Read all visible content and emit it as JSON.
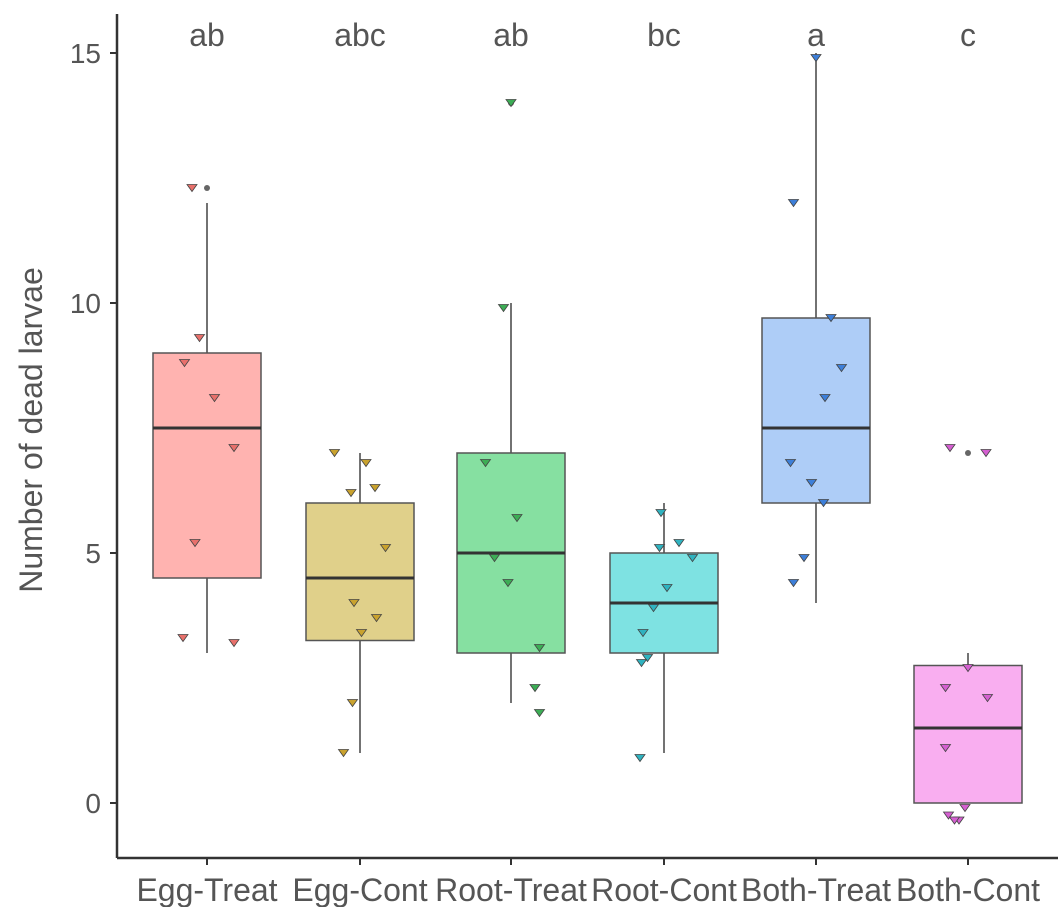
{
  "chart_data": {
    "type": "box",
    "ylabel": "Number of dead larvae",
    "xlabel": "",
    "title": "",
    "ylim": [
      -1,
      15.8
    ],
    "yticks": [
      0,
      5,
      10,
      15
    ],
    "ytick_labels": [
      "0",
      "5",
      "10",
      "15"
    ],
    "categories": [
      "Egg-Treat",
      "Egg-Cont",
      "Root-Treat",
      "Root-Cont",
      "Both-Treat",
      "Both-Cont"
    ],
    "groups": [
      {
        "name": "Egg-Treat",
        "letter": "ab",
        "color": "#ffb3b0",
        "point_color": "#e8706b",
        "min": 3,
        "q1": 4.5,
        "median": 7.5,
        "q3": 9,
        "max": 12,
        "outliers": [
          12.3
        ],
        "points": [
          [
            -0.1,
            12.3
          ],
          [
            -0.05,
            9.3
          ],
          [
            -0.15,
            8.8
          ],
          [
            0.05,
            8.1
          ],
          [
            0.18,
            7.1
          ],
          [
            -0.08,
            5.2
          ],
          [
            -0.16,
            3.3
          ],
          [
            0.18,
            3.2
          ]
        ]
      },
      {
        "name": "Egg-Cont",
        "letter": "abc",
        "color": "#e0d08a",
        "point_color": "#c9a22e",
        "min": 1,
        "q1": 3.25,
        "median": 4.5,
        "q3": 6,
        "max": 7,
        "outliers": [],
        "points": [
          [
            -0.17,
            7.0
          ],
          [
            0.04,
            6.8
          ],
          [
            -0.06,
            6.2
          ],
          [
            0.1,
            6.3
          ],
          [
            0.17,
            5.1
          ],
          [
            -0.04,
            4.0
          ],
          [
            0.11,
            3.7
          ],
          [
            0.01,
            3.4
          ],
          [
            -0.05,
            2.0
          ],
          [
            -0.11,
            1.0
          ]
        ]
      },
      {
        "name": "Root-Treat",
        "letter": "ab",
        "color": "#86e0a1",
        "point_color": "#3cad55",
        "min": 2,
        "q1": 3,
        "median": 5,
        "q3": 7,
        "max": 10,
        "outliers": [
          14
        ],
        "points": [
          [
            0.0,
            14.0
          ],
          [
            -0.05,
            9.9
          ],
          [
            -0.17,
            6.8
          ],
          [
            0.04,
            5.7
          ],
          [
            -0.11,
            4.9
          ],
          [
            -0.02,
            4.4
          ],
          [
            0.19,
            3.1
          ],
          [
            0.16,
            2.3
          ],
          [
            0.19,
            1.8
          ]
        ]
      },
      {
        "name": "Root-Cont",
        "letter": "bc",
        "color": "#7ee2e2",
        "point_color": "#2fb3c0",
        "min": 1,
        "q1": 3,
        "median": 4,
        "q3": 5,
        "max": 6,
        "outliers": [],
        "points": [
          [
            -0.02,
            5.8
          ],
          [
            0.1,
            5.2
          ],
          [
            -0.03,
            5.1
          ],
          [
            0.19,
            4.9
          ],
          [
            0.02,
            4.3
          ],
          [
            -0.07,
            3.9
          ],
          [
            -0.14,
            3.4
          ],
          [
            -0.11,
            2.9
          ],
          [
            -0.15,
            2.8
          ],
          [
            -0.16,
            0.9
          ]
        ]
      },
      {
        "name": "Both-Treat",
        "letter": "a",
        "color": "#aecdf7",
        "point_color": "#3d7fd9",
        "min": 4,
        "q1": 6,
        "median": 7.5,
        "q3": 9.7,
        "max": 15,
        "outliers": [],
        "points": [
          [
            0.0,
            14.9
          ],
          [
            -0.15,
            12.0
          ],
          [
            0.1,
            9.7
          ],
          [
            0.17,
            8.7
          ],
          [
            0.06,
            8.1
          ],
          [
            -0.17,
            6.8
          ],
          [
            -0.03,
            6.4
          ],
          [
            0.05,
            6.0
          ],
          [
            -0.08,
            4.9
          ],
          [
            -0.15,
            4.4
          ]
        ]
      },
      {
        "name": "Both-Cont",
        "letter": "c",
        "color": "#f9aef0",
        "point_color": "#d45fd0",
        "min": 0,
        "q1": 0,
        "median": 1.5,
        "q3": 2.75,
        "max": 3,
        "outliers": [
          7
        ],
        "points": [
          [
            -0.12,
            7.1
          ],
          [
            0.12,
            7.0
          ],
          [
            0.0,
            2.7
          ],
          [
            -0.15,
            2.3
          ],
          [
            0.13,
            2.1
          ],
          [
            -0.15,
            1.1
          ],
          [
            -0.02,
            -0.1
          ],
          [
            -0.13,
            -0.25
          ],
          [
            -0.06,
            -0.35
          ],
          [
            -0.09,
            -0.35
          ]
        ]
      }
    ]
  }
}
